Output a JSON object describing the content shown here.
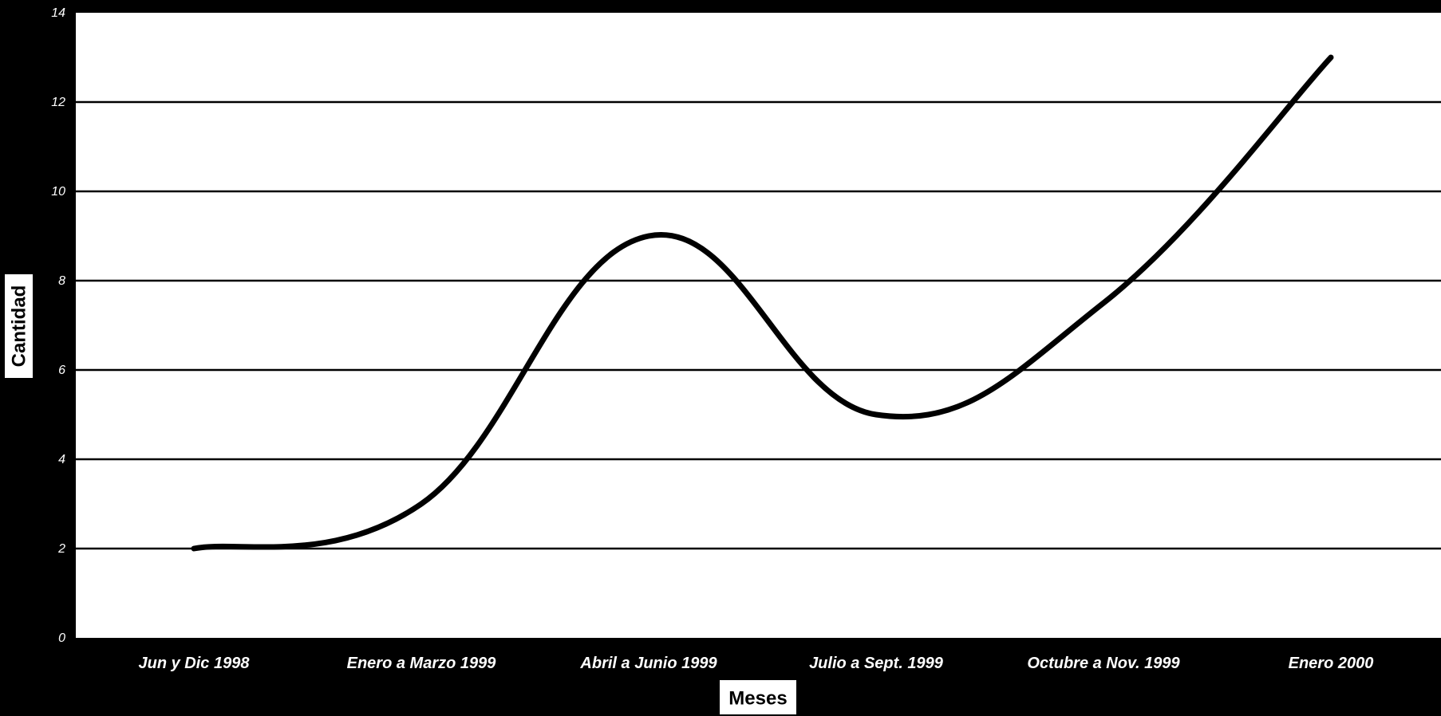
{
  "chart_data": {
    "type": "line",
    "categories": [
      "Jun y Dic 1998",
      "Enero a Marzo 1999",
      "Abril a Junio 1999",
      "Julio a Sept. 1999",
      "Octubre a Nov. 1999",
      "Enero 2000"
    ],
    "series": [
      {
        "values": [
          2,
          3,
          9,
          5,
          7.5,
          13
        ]
      }
    ],
    "title": "",
    "xlabel": "Meses",
    "ylabel": "Cantidad",
    "ylim": [
      0,
      14
    ],
    "yticks": [
      0,
      2,
      4,
      6,
      8,
      10,
      12,
      14
    ],
    "grid": true,
    "line_style": "smooth",
    "colors": {
      "background": "#000000",
      "plot_area": "#ffffff",
      "line": "#000000",
      "text": "#ffffff"
    }
  }
}
